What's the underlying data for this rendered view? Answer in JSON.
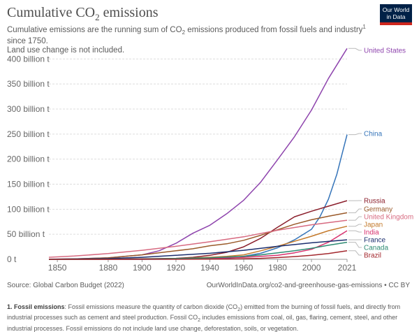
{
  "header": {
    "title_main": "Cumulative CO",
    "title_sub": "2",
    "title_tail": " emissions",
    "subtitle_part1": "Cumulative emissions are the running sum of CO",
    "subtitle_sub": "2",
    "subtitle_part2": " emissions produced from fossil fuels and industry",
    "subtitle_sup": "1",
    "subtitle_part3": " since 1750.",
    "subtitle_line2": "Land use change is not included.",
    "logo_line1": "Our World",
    "logo_line2": "in Data"
  },
  "footer": {
    "source": "Source: Global Carbon Budget (2022)",
    "url": "OurWorldInData.org/co2-and-greenhouse-gas-emissions • CC BY"
  },
  "note": {
    "heading": "1. Fossil emissions",
    "text_part1": ": Fossil emissions measure the quantity of carbon dioxide (CO",
    "text_sub1": "2",
    "text_part2": ") emitted from the burning of fossil fuels, and directly from industrial processes such as cement and steel production. Fossil CO",
    "text_sub2": "2",
    "text_part3": " includes emissions from coal, oil, gas, flaring, cement, steel, and other industrial processes. Fossil emissions do not include land use change, deforestation, soils, or vegetation."
  },
  "chart_data": {
    "type": "line",
    "title": "Cumulative CO₂ emissions",
    "xlim": [
      1750,
      2021
    ],
    "view_xlim": [
      1845,
      2021
    ],
    "ylim": [
      0,
      420
    ],
    "y_ticks": [
      0,
      50,
      100,
      150,
      200,
      250,
      300,
      350,
      400
    ],
    "y_tick_labels": [
      "0 t",
      "50 billion t",
      "100 billion t",
      "150 billion t",
      "200 billion t",
      "250 billion t",
      "300 billion t",
      "350 billion t",
      "400 billion t"
    ],
    "x_ticks": [
      1850,
      1880,
      1900,
      1920,
      1940,
      1960,
      1980,
      2000,
      2021
    ],
    "x_tick_labels": [
      "1850",
      "1880",
      "1900",
      "1920",
      "1940",
      "1960",
      "1980",
      "2000",
      "2021"
    ],
    "grid": "horizontal dashed",
    "legend": "labels at line ends (right)",
    "series": [
      {
        "name": "United States",
        "color": "#8e44ad",
        "x": [
          1845,
          1860,
          1880,
          1900,
          1910,
          1920,
          1930,
          1940,
          1950,
          1960,
          1970,
          1980,
          1990,
          2000,
          2010,
          2021
        ],
        "values": [
          0.3,
          0.9,
          3,
          9,
          17,
          32,
          52,
          68,
          91,
          118,
          154,
          199,
          245,
          298,
          361,
          421
        ]
      },
      {
        "name": "China",
        "color": "#3574b9",
        "x": [
          1845,
          1900,
          1930,
          1950,
          1960,
          1970,
          1980,
          1990,
          2000,
          2005,
          2010,
          2015,
          2021
        ],
        "values": [
          0,
          0.05,
          0.5,
          1.5,
          6,
          12,
          23,
          39,
          60,
          85,
          120,
          170,
          249
        ]
      },
      {
        "name": "Russia",
        "color": "#8b1f2c",
        "x": [
          1845,
          1880,
          1900,
          1920,
          1930,
          1940,
          1950,
          1960,
          1970,
          1980,
          1990,
          2000,
          2010,
          2021
        ],
        "values": [
          0,
          0.2,
          1,
          2,
          4,
          8,
          14,
          25,
          42,
          64,
          85,
          96,
          106,
          117
        ]
      },
      {
        "name": "Germany",
        "color": "#9a5a2a",
        "x": [
          1845,
          1860,
          1880,
          1900,
          1920,
          1930,
          1940,
          1950,
          1960,
          1970,
          1980,
          1990,
          2000,
          2010,
          2021
        ],
        "values": [
          0.1,
          0.8,
          3,
          9,
          17,
          21,
          27,
          31,
          38,
          48,
          59,
          70,
          79,
          86,
          93
        ]
      },
      {
        "name": "United Kingdom",
        "color": "#d76a80",
        "x": [
          1845,
          1860,
          1880,
          1900,
          1920,
          1940,
          1960,
          1980,
          2000,
          2021
        ],
        "values": [
          4,
          6.5,
          11.5,
          18,
          26,
          35,
          45,
          58,
          69,
          78
        ]
      },
      {
        "name": "Japan",
        "color": "#c47a2c",
        "x": [
          1845,
          1900,
          1920,
          1940,
          1950,
          1960,
          1970,
          1980,
          1990,
          2000,
          2010,
          2021
        ],
        "values": [
          0,
          0.3,
          1.5,
          4,
          6,
          9,
          17,
          26,
          36,
          46,
          57,
          66
        ]
      },
      {
        "name": "India",
        "color": "#d8316e",
        "x": [
          1845,
          1900,
          1920,
          1940,
          1960,
          1970,
          1980,
          1990,
          2000,
          2010,
          2021
        ],
        "values": [
          0,
          0.2,
          0.8,
          2,
          4,
          6,
          8,
          13,
          20,
          34,
          57
        ]
      },
      {
        "name": "France",
        "color": "#1b2e6e",
        "x": [
          1845,
          1880,
          1900,
          1920,
          1940,
          1960,
          1980,
          2000,
          2021
        ],
        "values": [
          0.2,
          1.5,
          4,
          8,
          12,
          18,
          26,
          33,
          39
        ]
      },
      {
        "name": "Canada",
        "color": "#2e8b73",
        "x": [
          1845,
          1900,
          1920,
          1940,
          1960,
          1970,
          1980,
          1990,
          2000,
          2010,
          2021
        ],
        "values": [
          0,
          0.5,
          1.5,
          3,
          6,
          9,
          13,
          17,
          22,
          28,
          34
        ]
      },
      {
        "name": "Brazil",
        "color": "#a3282e",
        "x": [
          1845,
          1920,
          1950,
          1970,
          1980,
          1990,
          2000,
          2010,
          2021
        ],
        "values": [
          0,
          0.1,
          0.6,
          2,
          3.5,
          5.5,
          8,
          11.5,
          17
        ]
      }
    ]
  }
}
